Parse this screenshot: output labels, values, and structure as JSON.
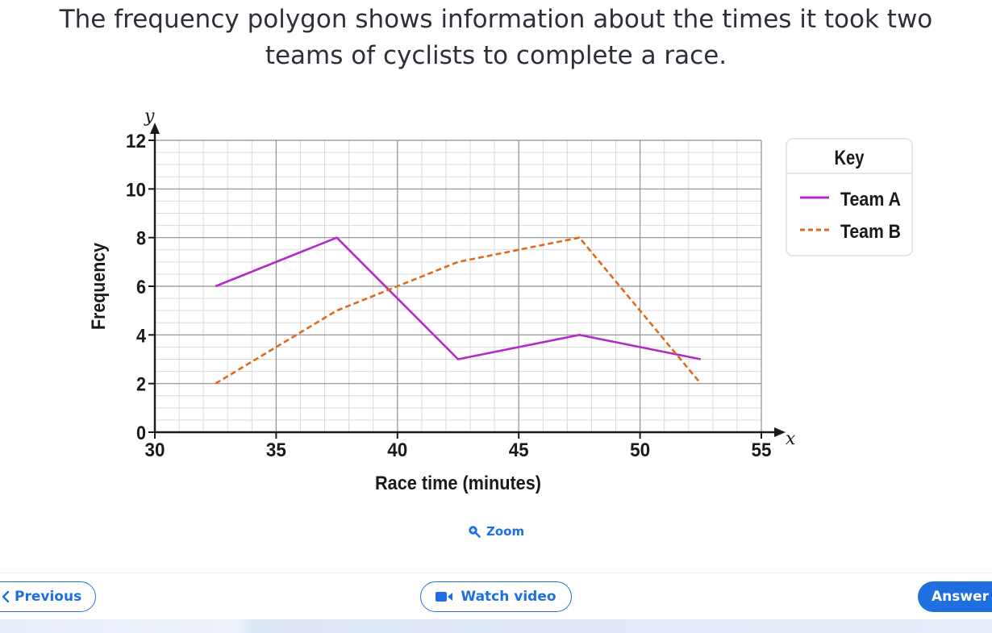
{
  "question": {
    "line1": "The frequency polygon shows information about the times it took two",
    "line2": "teams of cyclists to complete a race."
  },
  "chart_data": {
    "type": "line",
    "xlabel": "Race time (minutes)",
    "ylabel": "Frequency",
    "x_axis_symbol": "x",
    "y_axis_symbol": "y",
    "xlim": [
      30,
      55
    ],
    "ylim": [
      0,
      12
    ],
    "x_ticks": [
      30,
      35,
      40,
      45,
      50,
      55
    ],
    "y_ticks": [
      0,
      2,
      4,
      6,
      8,
      10,
      12
    ],
    "grid": true,
    "legend_position": "right",
    "legend_title": "Key",
    "series": [
      {
        "name": "Team A",
        "style": "solid",
        "color": "#b22bc8",
        "x": [
          32.5,
          37.5,
          42.5,
          47.5,
          52.5
        ],
        "y": [
          6,
          8,
          3,
          4,
          3
        ]
      },
      {
        "name": "Team B",
        "style": "dashed",
        "color": "#e06a1b",
        "x": [
          32.5,
          37.5,
          42.5,
          47.5,
          52.5
        ],
        "y": [
          2,
          5,
          7,
          8,
          2
        ]
      }
    ]
  },
  "actions": {
    "zoom_label": "Zoom",
    "previous_label": "Previous",
    "watch_video_label": "Watch video",
    "answer_label": "Answer"
  },
  "colors": {
    "accent": "#1f6fe0",
    "text": "#2f2f3a"
  }
}
